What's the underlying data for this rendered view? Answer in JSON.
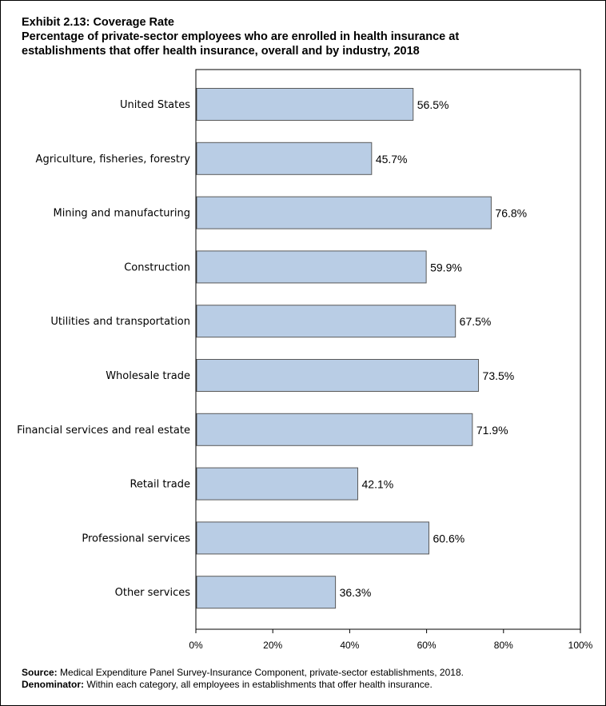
{
  "header": {
    "title": "Exhibit 2.13: Coverage Rate",
    "subtitle_line1": "Percentage of private-sector employees who are enrolled in health insurance at",
    "subtitle_line2": "establishments that offer health insurance, overall and by industry, 2018"
  },
  "footnotes": {
    "source_label": "Source:",
    "source_text": " Medical Expenditure Panel Survey-Insurance Component, private-sector establishments, 2018.",
    "denominator_label": "Denominator:",
    "denominator_text": " Within each category, all employees in establishments that offer health insurance."
  },
  "chart_data": {
    "type": "bar",
    "orientation": "horizontal",
    "categories": [
      "United States",
      "Agriculture, fisheries, forestry",
      "Mining and manufacturing",
      "Construction",
      "Utilities and transportation",
      "Wholesale trade",
      "Financial services and real estate",
      "Retail trade",
      "Professional services",
      "Other services"
    ],
    "values": [
      56.5,
      45.7,
      76.8,
      59.9,
      67.5,
      73.5,
      71.9,
      42.1,
      60.6,
      36.3
    ],
    "data_labels": [
      "56.5%",
      "45.7%",
      "76.8%",
      "59.9%",
      "67.5%",
      "73.5%",
      "71.9%",
      "42.1%",
      "60.6%",
      "36.3%"
    ],
    "xlim": [
      0,
      100
    ],
    "xticks": [
      0,
      20,
      40,
      60,
      80,
      100
    ],
    "xtick_labels": [
      "0%",
      "20%",
      "40%",
      "60%",
      "80%",
      "100%"
    ],
    "grid": false,
    "bar_color": "#b9cde5",
    "bar_edge_color": "#595959"
  }
}
